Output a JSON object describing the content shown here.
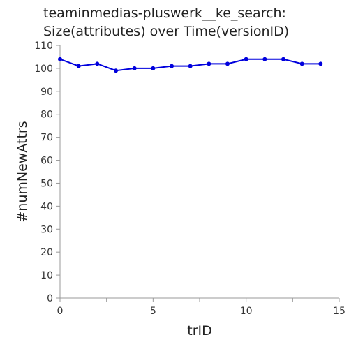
{
  "chart_data": {
    "type": "line",
    "title_lines": [
      "teaminmedias-pluswerk__ke_search:",
      "Size(attributes) over Time(versionID)"
    ],
    "xlabel": "trID",
    "ylabel": "#numNewAttrs",
    "xlim": [
      0,
      15
    ],
    "ylim": [
      0,
      110
    ],
    "x_ticks": [
      0,
      5,
      10,
      15
    ],
    "x_minor_ticks": [
      2.5,
      7.5,
      12.5
    ],
    "y_ticks": [
      0,
      10,
      20,
      30,
      40,
      50,
      60,
      70,
      80,
      90,
      100,
      110
    ],
    "grid": false,
    "line_color": "#0000dd",
    "series": [
      {
        "x": [
          0,
          1,
          2,
          3,
          4,
          5,
          6,
          7,
          8,
          9,
          10,
          11,
          12,
          13,
          14
        ],
        "y": [
          104,
          101,
          102,
          99,
          100,
          100,
          101,
          101,
          102,
          102,
          104,
          104,
          104,
          102,
          102
        ]
      }
    ]
  }
}
